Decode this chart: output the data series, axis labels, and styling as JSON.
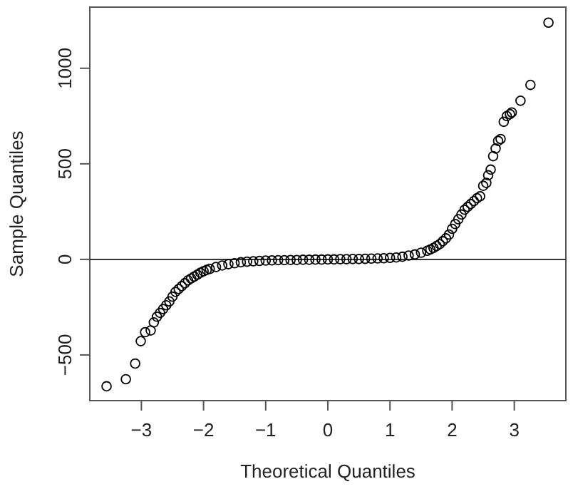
{
  "chart_data": {
    "type": "scatter",
    "xlabel": "Theoretical Quantiles",
    "ylabel": "Sample Quantiles",
    "xlim": [
      -3.83,
      3.83
    ],
    "ylim": [
      -739,
      1320
    ],
    "xticks": [
      -3,
      -2,
      -1,
      0,
      1,
      2,
      3
    ],
    "yticks": [
      -500,
      0,
      500,
      1000
    ],
    "marker": "circle",
    "grid": false,
    "ref_lines": [
      {
        "axis": "y",
        "value": 0,
        "color": "#333333"
      }
    ],
    "series": [
      {
        "color": "#000000",
        "x": [
          -3.56,
          -3.25,
          -3.1,
          -3.01,
          -2.94,
          -2.85,
          -2.8,
          -2.75,
          -2.7,
          -2.65,
          -2.6,
          -2.55,
          -2.5,
          -2.45,
          -2.4,
          -2.35,
          -2.3,
          -2.25,
          -2.2,
          -2.15,
          -2.1,
          -2.05,
          -2.0,
          -1.95,
          -1.9,
          -1.8,
          -1.7,
          -1.6,
          -1.5,
          -1.4,
          -1.3,
          -1.2,
          -1.1,
          -1.0,
          -0.9,
          -0.8,
          -0.7,
          -0.6,
          -0.5,
          -0.4,
          -0.3,
          -0.2,
          -0.1,
          0.0,
          0.1,
          0.2,
          0.3,
          0.4,
          0.5,
          0.6,
          0.7,
          0.8,
          0.9,
          1.0,
          1.1,
          1.2,
          1.3,
          1.4,
          1.5,
          1.6,
          1.65,
          1.7,
          1.75,
          1.8,
          1.85,
          1.9,
          1.95,
          2.0,
          2.05,
          2.1,
          2.15,
          2.2,
          2.25,
          2.3,
          2.35,
          2.4,
          2.45,
          2.5,
          2.55,
          2.58,
          2.62,
          2.66,
          2.7,
          2.74,
          2.78,
          2.83,
          2.88,
          2.93,
          2.96,
          3.1,
          3.26,
          3.55
        ],
        "values": [
          -664,
          -627,
          -545,
          -428,
          -381,
          -372,
          -330,
          -300,
          -280,
          -260,
          -240,
          -220,
          -195,
          -170,
          -155,
          -140,
          -125,
          -110,
          -100,
          -90,
          -80,
          -70,
          -62,
          -55,
          -50,
          -40,
          -32,
          -25,
          -20,
          -15,
          -12,
          -10,
          -8,
          -6,
          -5,
          -4,
          -4,
          -3,
          -3,
          -2,
          -2,
          -1,
          -1,
          0,
          0,
          1,
          1,
          2,
          2,
          3,
          4,
          5,
          6,
          8,
          10,
          14,
          20,
          26,
          35,
          45,
          52,
          60,
          70,
          80,
          95,
          110,
          130,
          160,
          185,
          210,
          235,
          260,
          275,
          290,
          305,
          320,
          330,
          385,
          400,
          440,
          470,
          540,
          580,
          620,
          630,
          720,
          750,
          760,
          769,
          830,
          913,
          1239
        ]
      }
    ]
  }
}
